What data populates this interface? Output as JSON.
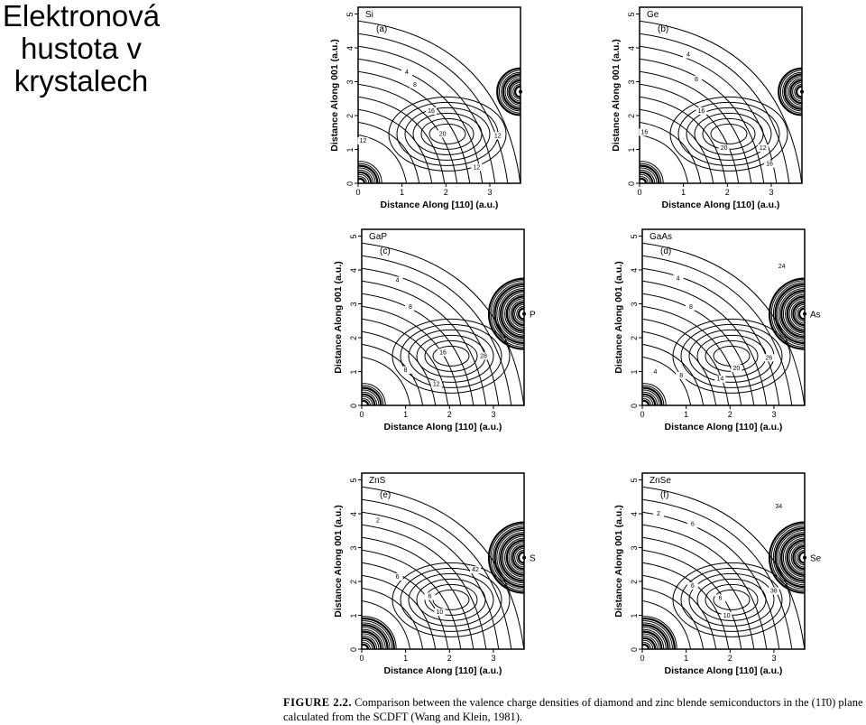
{
  "slide": {
    "title_lines": [
      "Elektronová",
      "hustota v",
      "krystalech"
    ]
  },
  "axes": {
    "xlabel": "Distance Along [110] (a.u.)",
    "ylabel": "Distance Along 001 (a.u.)",
    "x_ticks": [
      "0",
      "1",
      "2",
      "3"
    ],
    "y_ticks": [
      "0",
      "1",
      "2",
      "3",
      "4",
      "5"
    ]
  },
  "panels": [
    {
      "material": "Si",
      "letter": "(a)",
      "atom_label": "",
      "contour_labels": [
        "4",
        "8",
        "16",
        "20",
        "12",
        "12",
        "12"
      ]
    },
    {
      "material": "Ge",
      "letter": "(b)",
      "atom_label": "",
      "contour_labels": [
        "4",
        "8",
        "16",
        "20",
        "16",
        "12",
        "16"
      ]
    },
    {
      "material": "GaP",
      "letter": "(c)",
      "atom_label": "P",
      "contour_labels": [
        "4",
        "8",
        "16",
        "28",
        "12",
        "8"
      ]
    },
    {
      "material": "GaAs",
      "letter": "(d)",
      "atom_label": "As",
      "contour_labels": [
        "4",
        "8",
        "24",
        "26",
        "20",
        "14",
        "4",
        "8"
      ]
    },
    {
      "material": "ZnS",
      "letter": "(e)",
      "atom_label": "S",
      "contour_labels": [
        "2",
        "6",
        "6",
        "42",
        "10"
      ]
    },
    {
      "material": "ZnSe",
      "letter": "(f)",
      "atom_label": "Se",
      "contour_labels": [
        "2",
        "6",
        "6",
        "34",
        "36",
        "10",
        "6"
      ]
    }
  ],
  "caption": {
    "figure_label": "FIGURE 2.2.",
    "text": "Comparison between the valence charge densities of diamond and zinc blende semiconductors in the (11̄0) plane calculated from the SCDFT (Wang and Klein, 1981)."
  }
}
